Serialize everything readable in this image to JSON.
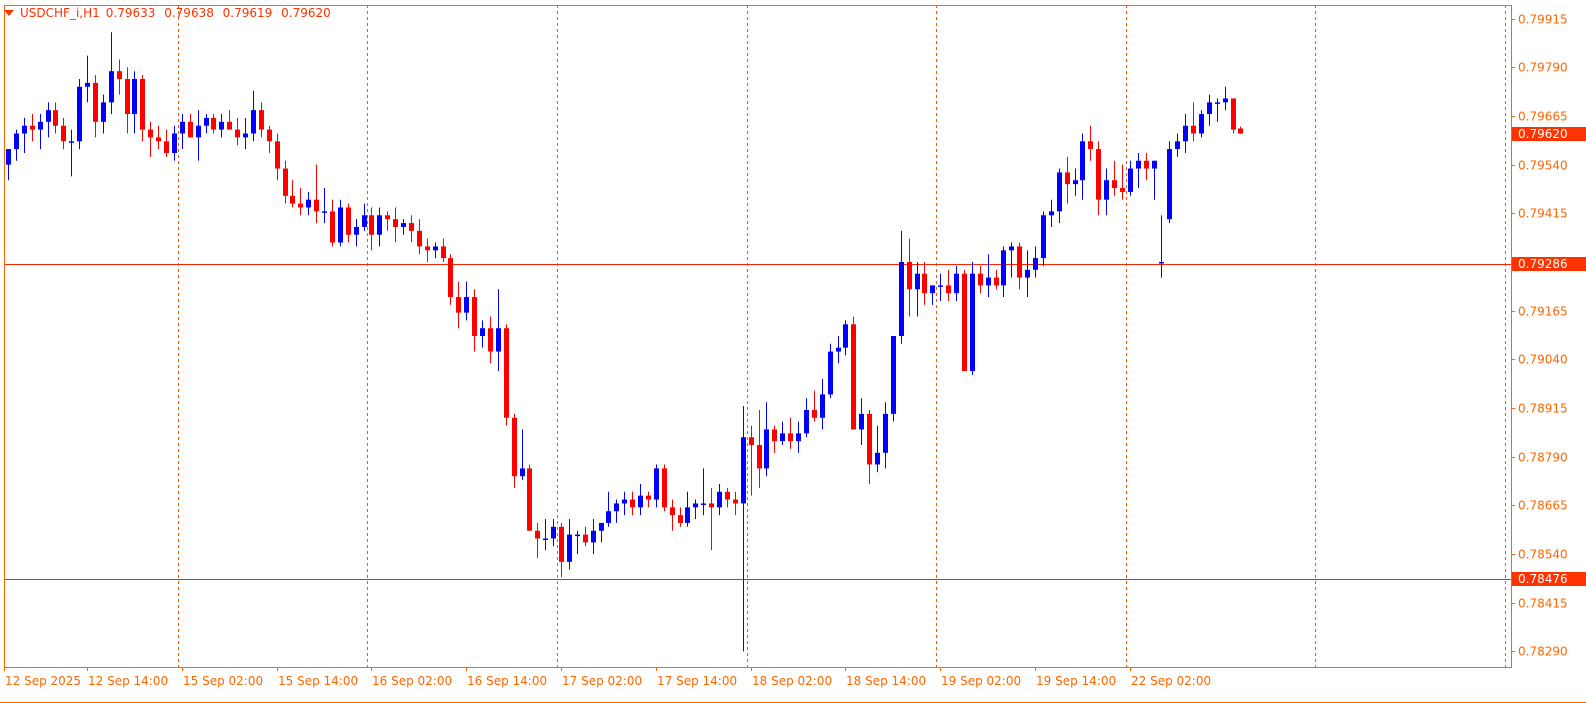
{
  "window": {
    "symbol_label": "USDCHF_i,H1",
    "open": "0.79633",
    "high": "0.79638",
    "low": "0.79619",
    "close": "0.79620"
  },
  "colors": {
    "background": "#FFFFFF",
    "axis": "#FF6600",
    "grid": "#FF5500",
    "bull": "#0000FF",
    "bear": "#FF0000",
    "hline": "#FF2200",
    "price_tag_bg": "#FF3300",
    "price_tag_text": "#FFFFFF"
  },
  "icons": {
    "menu": "dropdown-triangle-icon"
  },
  "chart_data": {
    "type": "candlestick",
    "symbol": "USDCHF_i",
    "timeframe": "H1",
    "y_range": [
      0.7825,
      0.7995
    ],
    "y_ticks": [
      "0.79915",
      "0.79790",
      "0.79665",
      "0.79540",
      "0.79415",
      "0.79165",
      "0.79040",
      "0.78915",
      "0.78790",
      "0.78665",
      "0.78540",
      "0.78415",
      "0.78290"
    ],
    "x_ticks": [
      "12 Sep 2025",
      "12 Sep 14:00",
      "15 Sep 02:00",
      "15 Sep 14:00",
      "16 Sep 02:00",
      "16 Sep 14:00",
      "17 Sep 02:00",
      "17 Sep 14:00",
      "18 Sep 02:00",
      "18 Sep 14:00",
      "19 Sep 02:00",
      "19 Sep 14:00",
      "22 Sep 02:00"
    ],
    "vertical_separators_after_bar": [
      21,
      45,
      69,
      93,
      117,
      141,
      165,
      189
    ],
    "horizontal_lines": [
      {
        "price": 0.79286,
        "label": "0.79286"
      },
      {
        "price": 0.78476,
        "label": "0.78476"
      }
    ],
    "current_price": {
      "price": 0.7962,
      "label": "0.79620"
    },
    "candles": [
      [
        0.7954,
        0.7958,
        0.795,
        0.7958
      ],
      [
        0.7958,
        0.7963,
        0.7955,
        0.7962
      ],
      [
        0.7962,
        0.7966,
        0.7957,
        0.7964
      ],
      [
        0.7964,
        0.7967,
        0.796,
        0.7963
      ],
      [
        0.7963,
        0.7967,
        0.7958,
        0.7965
      ],
      [
        0.7965,
        0.797,
        0.7961,
        0.7968
      ],
      [
        0.7968,
        0.797,
        0.7962,
        0.7964
      ],
      [
        0.7964,
        0.7966,
        0.7958,
        0.796
      ],
      [
        0.796,
        0.7963,
        0.7951,
        0.796
      ],
      [
        0.796,
        0.7976,
        0.7958,
        0.7974
      ],
      [
        0.7974,
        0.7982,
        0.797,
        0.7975
      ],
      [
        0.7975,
        0.7977,
        0.7961,
        0.7965
      ],
      [
        0.7965,
        0.7972,
        0.7962,
        0.797
      ],
      [
        0.797,
        0.7988,
        0.7967,
        0.7978
      ],
      [
        0.7978,
        0.7981,
        0.7972,
        0.7976
      ],
      [
        0.7976,
        0.7979,
        0.7962,
        0.7967
      ],
      [
        0.7967,
        0.7978,
        0.7962,
        0.7976
      ],
      [
        0.7976,
        0.7977,
        0.796,
        0.7963
      ],
      [
        0.7963,
        0.7965,
        0.7956,
        0.7961
      ],
      [
        0.7961,
        0.7964,
        0.7958,
        0.796
      ],
      [
        0.796,
        0.7963,
        0.7956,
        0.7957
      ],
      [
        0.7957,
        0.7964,
        0.7955,
        0.7962
      ],
      [
        0.7962,
        0.7967,
        0.7958,
        0.7965
      ],
      [
        0.7965,
        0.7967,
        0.7961,
        0.7961
      ],
      [
        0.7961,
        0.7968,
        0.7955,
        0.7964
      ],
      [
        0.7964,
        0.7967,
        0.7962,
        0.7966
      ],
      [
        0.7966,
        0.7967,
        0.7962,
        0.7963
      ],
      [
        0.7963,
        0.7967,
        0.7961,
        0.7965
      ],
      [
        0.7965,
        0.7968,
        0.7963,
        0.7963
      ],
      [
        0.7963,
        0.7966,
        0.7959,
        0.7961
      ],
      [
        0.7961,
        0.7966,
        0.7958,
        0.7962
      ],
      [
        0.7962,
        0.7973,
        0.796,
        0.7968
      ],
      [
        0.7968,
        0.797,
        0.7961,
        0.7963
      ],
      [
        0.7963,
        0.7964,
        0.7957,
        0.796
      ],
      [
        0.796,
        0.7962,
        0.795,
        0.7953
      ],
      [
        0.7953,
        0.7955,
        0.7944,
        0.7946
      ],
      [
        0.7946,
        0.795,
        0.7943,
        0.7944
      ],
      [
        0.7944,
        0.7948,
        0.7941,
        0.7943
      ],
      [
        0.7943,
        0.7947,
        0.7941,
        0.7945
      ],
      [
        0.7945,
        0.7954,
        0.7939,
        0.7942
      ],
      [
        0.7942,
        0.7948,
        0.7939,
        0.7942
      ],
      [
        0.7942,
        0.7945,
        0.7933,
        0.7934
      ],
      [
        0.7934,
        0.7945,
        0.7933,
        0.7943
      ],
      [
        0.7943,
        0.7944,
        0.7934,
        0.7936
      ],
      [
        0.7936,
        0.794,
        0.7933,
        0.7938
      ],
      [
        0.7938,
        0.7944,
        0.7937,
        0.7941
      ],
      [
        0.7941,
        0.7943,
        0.7932,
        0.7936
      ],
      [
        0.7936,
        0.7943,
        0.7933,
        0.7941
      ],
      [
        0.7941,
        0.7942,
        0.7937,
        0.794
      ],
      [
        0.794,
        0.7943,
        0.7934,
        0.7938
      ],
      [
        0.7938,
        0.794,
        0.7936,
        0.7939
      ],
      [
        0.7939,
        0.7941,
        0.7934,
        0.7937
      ],
      [
        0.7937,
        0.794,
        0.7931,
        0.7933
      ],
      [
        0.7933,
        0.7935,
        0.7929,
        0.7932
      ],
      [
        0.7932,
        0.7934,
        0.793,
        0.7933
      ],
      [
        0.7933,
        0.7935,
        0.7929,
        0.793
      ],
      [
        0.793,
        0.7931,
        0.7918,
        0.792
      ],
      [
        0.792,
        0.7924,
        0.7912,
        0.7916
      ],
      [
        0.7916,
        0.7924,
        0.7914,
        0.792
      ],
      [
        0.792,
        0.7922,
        0.7906,
        0.791
      ],
      [
        0.791,
        0.7914,
        0.7907,
        0.7912
      ],
      [
        0.7912,
        0.7915,
        0.7903,
        0.7906
      ],
      [
        0.7906,
        0.7922,
        0.7901,
        0.7912
      ],
      [
        0.7912,
        0.7913,
        0.7887,
        0.7889
      ],
      [
        0.7889,
        0.789,
        0.7871,
        0.7874
      ],
      [
        0.7874,
        0.7886,
        0.7873,
        0.7876
      ],
      [
        0.7876,
        0.7877,
        0.786,
        0.786
      ],
      [
        0.786,
        0.7862,
        0.7853,
        0.7858
      ],
      [
        0.7858,
        0.7863,
        0.7855,
        0.7858
      ],
      [
        0.7858,
        0.7863,
        0.7856,
        0.7861
      ],
      [
        0.7861,
        0.7862,
        0.7848,
        0.7852
      ],
      [
        0.7852,
        0.7863,
        0.785,
        0.7859
      ],
      [
        0.7859,
        0.786,
        0.7854,
        0.7859
      ],
      [
        0.7859,
        0.7861,
        0.7856,
        0.7857
      ],
      [
        0.7857,
        0.7863,
        0.7854,
        0.786
      ],
      [
        0.786,
        0.7862,
        0.7857,
        0.7862
      ],
      [
        0.7862,
        0.787,
        0.7861,
        0.7865
      ],
      [
        0.7865,
        0.7868,
        0.7862,
        0.7867
      ],
      [
        0.7867,
        0.787,
        0.7864,
        0.7868
      ],
      [
        0.7868,
        0.787,
        0.7864,
        0.7866
      ],
      [
        0.7866,
        0.7872,
        0.7864,
        0.7869
      ],
      [
        0.7869,
        0.787,
        0.7866,
        0.7868
      ],
      [
        0.7868,
        0.7877,
        0.7866,
        0.7876
      ],
      [
        0.7876,
        0.7877,
        0.7865,
        0.7866
      ],
      [
        0.7866,
        0.7868,
        0.786,
        0.7864
      ],
      [
        0.7864,
        0.7866,
        0.7861,
        0.7862
      ],
      [
        0.7862,
        0.787,
        0.7861,
        0.7866
      ],
      [
        0.7866,
        0.7868,
        0.7863,
        0.7867
      ],
      [
        0.7867,
        0.7876,
        0.7864,
        0.7867
      ],
      [
        0.7867,
        0.7871,
        0.7855,
        0.7866
      ],
      [
        0.7866,
        0.7872,
        0.7864,
        0.787
      ],
      [
        0.787,
        0.7871,
        0.7866,
        0.7868
      ],
      [
        0.7868,
        0.787,
        0.7864,
        0.7867
      ],
      [
        0.7867,
        0.7892,
        0.7829,
        0.7884
      ],
      [
        0.7884,
        0.7887,
        0.7869,
        0.7882
      ],
      [
        0.7882,
        0.7891,
        0.7871,
        0.7876
      ],
      [
        0.7876,
        0.7893,
        0.7874,
        0.7886
      ],
      [
        0.7886,
        0.7887,
        0.788,
        0.7883
      ],
      [
        0.7883,
        0.7888,
        0.7882,
        0.7885
      ],
      [
        0.7885,
        0.7889,
        0.7881,
        0.7883
      ],
      [
        0.7883,
        0.7888,
        0.788,
        0.7885
      ],
      [
        0.7885,
        0.7894,
        0.7884,
        0.7891
      ],
      [
        0.7891,
        0.7896,
        0.7888,
        0.7889
      ],
      [
        0.7889,
        0.7899,
        0.7886,
        0.7895
      ],
      [
        0.7895,
        0.7908,
        0.7894,
        0.7906
      ],
      [
        0.7906,
        0.791,
        0.7903,
        0.7907
      ],
      [
        0.7907,
        0.7914,
        0.7905,
        0.7913
      ],
      [
        0.7913,
        0.7915,
        0.7886,
        0.7886
      ],
      [
        0.7886,
        0.7894,
        0.7882,
        0.789
      ],
      [
        0.789,
        0.7891,
        0.7872,
        0.7877
      ],
      [
        0.7877,
        0.7887,
        0.7875,
        0.788
      ],
      [
        0.788,
        0.7893,
        0.7876,
        0.789
      ],
      [
        0.789,
        0.791,
        0.7888,
        0.791
      ],
      [
        0.791,
        0.7937,
        0.7908,
        0.7929
      ],
      [
        0.7929,
        0.7935,
        0.7915,
        0.7922
      ],
      [
        0.7922,
        0.7929,
        0.7915,
        0.7926
      ],
      [
        0.7926,
        0.7929,
        0.7918,
        0.7921
      ],
      [
        0.7921,
        0.7923,
        0.7918,
        0.7923
      ],
      [
        0.7923,
        0.7926,
        0.7919,
        0.7923
      ],
      [
        0.7923,
        0.7927,
        0.7919,
        0.7921
      ],
      [
        0.7921,
        0.7928,
        0.7919,
        0.7926
      ],
      [
        0.7926,
        0.7927,
        0.7901,
        0.7901
      ],
      [
        0.7901,
        0.7929,
        0.79,
        0.7926
      ],
      [
        0.7926,
        0.7928,
        0.7921,
        0.7923
      ],
      [
        0.7923,
        0.7931,
        0.792,
        0.7925
      ],
      [
        0.7925,
        0.7927,
        0.7922,
        0.7923
      ],
      [
        0.7923,
        0.7933,
        0.792,
        0.7932
      ],
      [
        0.7932,
        0.7934,
        0.7925,
        0.7933
      ],
      [
        0.7933,
        0.7934,
        0.7922,
        0.7925
      ],
      [
        0.7925,
        0.7932,
        0.792,
        0.7927
      ],
      [
        0.7927,
        0.7933,
        0.7925,
        0.793
      ],
      [
        0.793,
        0.7942,
        0.7928,
        0.7941
      ],
      [
        0.7941,
        0.7945,
        0.7938,
        0.7942
      ],
      [
        0.7942,
        0.7953,
        0.7939,
        0.7952
      ],
      [
        0.7952,
        0.7956,
        0.7944,
        0.7949
      ],
      [
        0.7949,
        0.7953,
        0.7946,
        0.795
      ],
      [
        0.795,
        0.7962,
        0.7945,
        0.796
      ],
      [
        0.796,
        0.7964,
        0.7955,
        0.7958
      ],
      [
        0.7958,
        0.796,
        0.7941,
        0.7945
      ],
      [
        0.7945,
        0.7953,
        0.7941,
        0.795
      ],
      [
        0.795,
        0.7955,
        0.7946,
        0.7948
      ],
      [
        0.7948,
        0.7954,
        0.7945,
        0.7947
      ],
      [
        0.7947,
        0.7955,
        0.7946,
        0.7953
      ],
      [
        0.7953,
        0.7957,
        0.7948,
        0.7955
      ],
      [
        0.7955,
        0.7957,
        0.795,
        0.7953
      ],
      [
        0.7953,
        0.7955,
        0.7945,
        0.7955
      ],
      [
        0.7929,
        0.7941,
        0.7925,
        0.7929
      ],
      [
        0.794,
        0.796,
        0.7939,
        0.7958
      ],
      [
        0.7958,
        0.7962,
        0.7956,
        0.796
      ],
      [
        0.796,
        0.7967,
        0.7957,
        0.7964
      ],
      [
        0.7964,
        0.797,
        0.796,
        0.7962
      ],
      [
        0.7962,
        0.7968,
        0.7961,
        0.7967
      ],
      [
        0.7967,
        0.7972,
        0.7964,
        0.797
      ],
      [
        0.797,
        0.7971,
        0.7965,
        0.797
      ],
      [
        0.797,
        0.7974,
        0.7968,
        0.7971
      ],
      [
        0.7971,
        0.7971,
        0.7962,
        0.7963
      ],
      [
        0.79633,
        0.79638,
        0.79619,
        0.7962
      ]
    ]
  }
}
